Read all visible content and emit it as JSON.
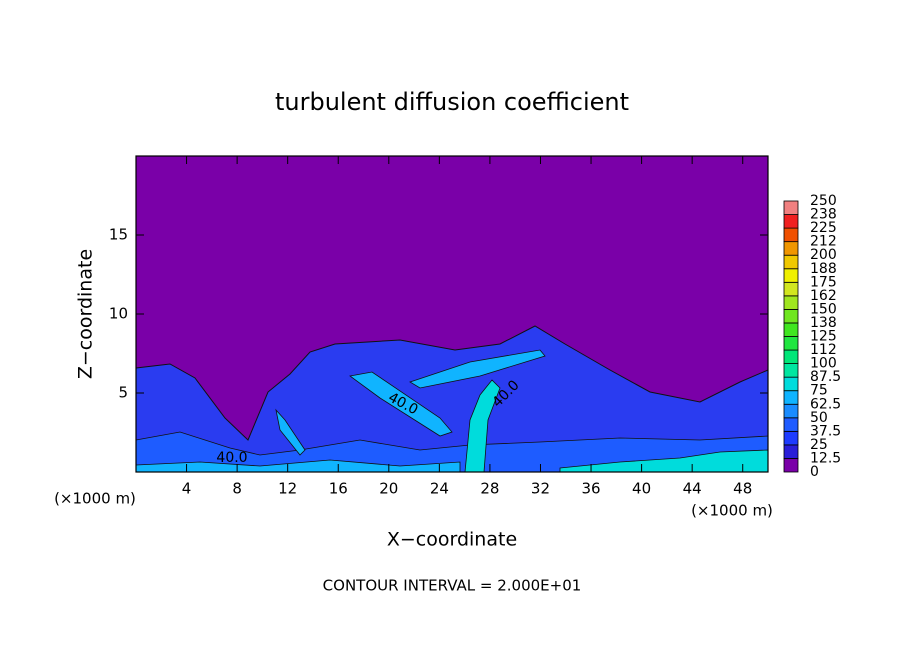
{
  "chart_data": {
    "type": "contour",
    "title": "turbulent diffusion coefficient",
    "x_label": "X−coordinate",
    "y_label": "Z−coordinate",
    "x_unit": "(×1000 m)",
    "footer": "CONTOUR INTERVAL = 2.000E+01",
    "contour_labels": [
      "40.0",
      "40.0",
      "40.0"
    ],
    "xlim": [
      0,
      50
    ],
    "ylim": [
      0,
      20
    ],
    "xticks": [
      4,
      8,
      12,
      16,
      20,
      24,
      28,
      32,
      36,
      40,
      44,
      48
    ],
    "yticks": [
      5,
      10,
      15
    ],
    "colorbar": {
      "levels": [
        0,
        12.5,
        25,
        37.5,
        50,
        62.5,
        75,
        87.5,
        100,
        112,
        125,
        138,
        150,
        162,
        175,
        188,
        200,
        212,
        225,
        238,
        250
      ],
      "colors": [
        "#7a00a8",
        "#2a1ed8",
        "#1e3cff",
        "#1f5cff",
        "#1a8cff",
        "#10b4ff",
        "#00dcdc",
        "#00e6a0",
        "#00e678",
        "#20e640",
        "#40e620",
        "#70e620",
        "#a0e620",
        "#d2e620",
        "#f0f000",
        "#f0c800",
        "#f09600",
        "#f05000",
        "#f02020",
        "#f08080"
      ]
    }
  }
}
